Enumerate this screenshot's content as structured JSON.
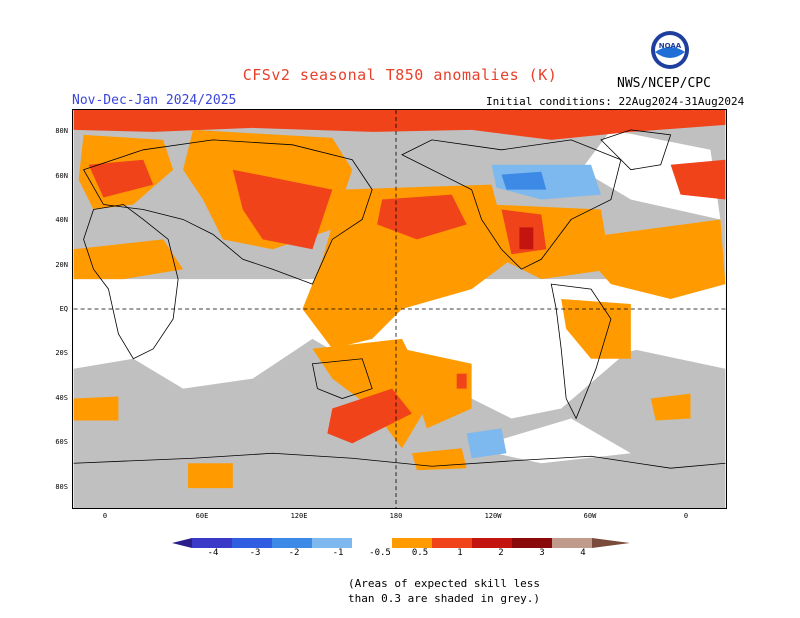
{
  "header": {
    "title": "CFSv2 seasonal T850 anomalies (K)",
    "season": "Nov-Dec-Jan 2024/2025",
    "initial_conditions": "Initial conditions: 22Aug2024-31Aug2024",
    "agency": "NWS/NCEP/CPC",
    "logo_text": "NOAA"
  },
  "map": {
    "lat_labels": [
      "80N",
      "60N",
      "40N",
      "20N",
      "EQ",
      "20S",
      "40S",
      "60S",
      "80S"
    ],
    "lon_labels": [
      "0",
      "60E",
      "120E",
      "180",
      "120W",
      "60W",
      "0"
    ]
  },
  "legend": {
    "labels": [
      "-4",
      "-3",
      "-2",
      "-1",
      "-0.5",
      "0.5",
      "1",
      "2",
      "3",
      "4"
    ],
    "colors": {
      "lt_m4": "#2a1e8a",
      "m4_m3": "#3a39c8",
      "m3_m2": "#2f5fe0",
      "m2_m1": "#3d8ae6",
      "m1_m05": "#7db8ee",
      "neutral": "#ffffff",
      "p05_p1": "#ff9a00",
      "p1_p2": "#f0431a",
      "p2_p3": "#c41410",
      "p3_p4": "#8a0a0a",
      "p4_plus": "#c09a8a",
      "gt_p4": "#7a4a3a",
      "low_skill": "#c0c0c0"
    }
  },
  "note": {
    "line1": "(Areas of expected skill less",
    "line2": "than 0.3 are shaded in grey.)"
  }
}
